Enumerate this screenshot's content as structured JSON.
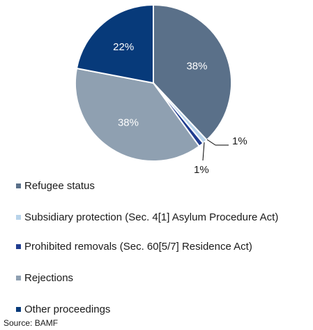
{
  "chart_data": {
    "type": "pie",
    "title": "",
    "slices": [
      {
        "label": "Refugee status",
        "value": 38,
        "display": "38%",
        "color": "#5a7089"
      },
      {
        "label": "Subsidiary protection (Sec. 4[1] Asylum Procedure Act)",
        "value": 1,
        "display": "1%",
        "color": "#b8d3ea"
      },
      {
        "label": "Prohibited removals (Sec. 60[5/7] Residence Act)",
        "value": 1,
        "display": "1%",
        "color": "#1f3c8f"
      },
      {
        "label": "Rejections",
        "value": 38,
        "display": "38%",
        "color": "#8fa0b1"
      },
      {
        "label": "Other proceedings",
        "value": 22,
        "display": "22%",
        "color": "#073a7a"
      }
    ],
    "legend_position": "bottom"
  },
  "source": "Source: BAMF"
}
